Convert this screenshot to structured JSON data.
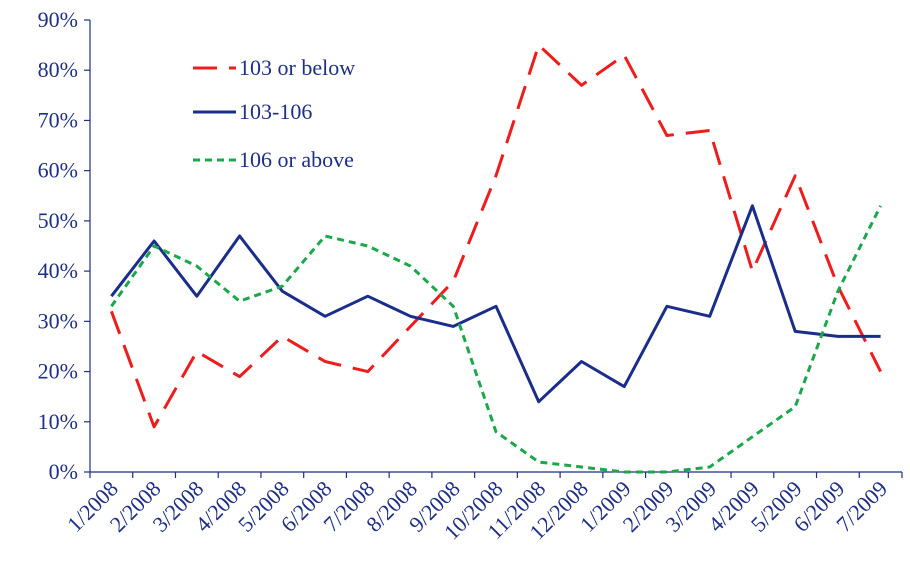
{
  "chart_data": {
    "type": "line",
    "categories": [
      "1/2008",
      "2/2008",
      "3/2008",
      "4/2008",
      "5/2008",
      "6/2008",
      "7/2008",
      "8/2008",
      "9/2008",
      "10/2008",
      "11/2008",
      "12/2008",
      "1/2009",
      "2/2009",
      "3/2009",
      "4/2009",
      "5/2009",
      "6/2009",
      "7/2009"
    ],
    "ylim": [
      0,
      90
    ],
    "yticks": [
      "0%",
      "10%",
      "20%",
      "30%",
      "40%",
      "50%",
      "60%",
      "70%",
      "80%",
      "90%"
    ],
    "grid": false,
    "legend_position": "top-left",
    "series": [
      {
        "name": "103 or below",
        "color": "#ee1c1c",
        "dash": "long-dash",
        "values": [
          32,
          9,
          24,
          19,
          27,
          22,
          20,
          29,
          38,
          59,
          85,
          77,
          83,
          67,
          68,
          40,
          59,
          37,
          20
        ]
      },
      {
        "name": "103-106",
        "color": "#1a2d8a",
        "dash": "solid",
        "values": [
          35,
          46,
          35,
          47,
          36,
          31,
          35,
          31,
          29,
          33,
          14,
          22,
          17,
          33,
          31,
          53,
          28,
          27,
          27
        ]
      },
      {
        "name": "106 or above",
        "color": "#1aa84a",
        "dash": "short-dash",
        "values": [
          33,
          45,
          41,
          34,
          37,
          47,
          45,
          41,
          33,
          8,
          2,
          1,
          0,
          0,
          1,
          7,
          13,
          36,
          53
        ]
      }
    ]
  }
}
